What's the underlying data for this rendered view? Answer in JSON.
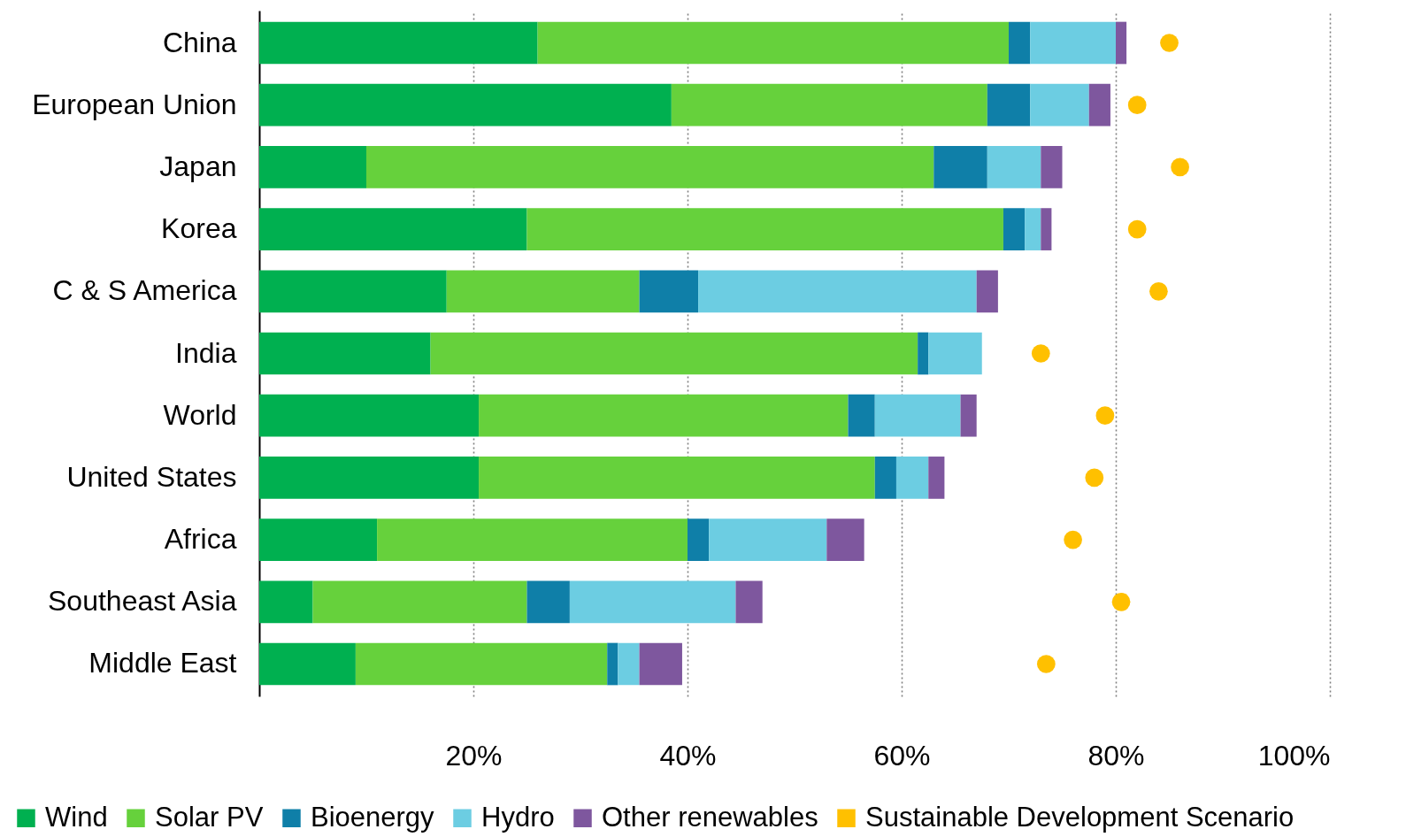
{
  "chart_data": {
    "type": "bar",
    "orientation": "horizontal",
    "stacked": true,
    "categories": [
      "China",
      "European Union",
      "Japan",
      "Korea",
      "C & S America",
      "India",
      "World",
      "United States",
      "Africa",
      "Southeast Asia",
      "Middle East"
    ],
    "series": [
      {
        "name": "Wind",
        "color": "#00b050",
        "values": [
          26,
          38.5,
          10,
          25,
          17.5,
          16,
          20.5,
          20.5,
          11,
          5,
          9
        ]
      },
      {
        "name": "Solar PV",
        "color": "#66d13c",
        "values": [
          44,
          29.5,
          53,
          44.5,
          18,
          45.5,
          34.5,
          37,
          29,
          20,
          23.5
        ]
      },
      {
        "name": "Bioenergy",
        "color": "#0f7fa8",
        "values": [
          2,
          4,
          5,
          2,
          5.5,
          1,
          2.5,
          2,
          2,
          4,
          1
        ]
      },
      {
        "name": "Hydro",
        "color": "#6ccde2",
        "values": [
          8,
          5.5,
          5,
          1.5,
          26,
          5,
          8,
          3,
          11,
          15.5,
          2
        ]
      },
      {
        "name": "Other renewables",
        "color": "#7e579e",
        "values": [
          1,
          2,
          2,
          1,
          2,
          null,
          1.5,
          1.5,
          3.5,
          2.5,
          4
        ]
      },
      {
        "name": "Sustainable Development Scenario",
        "type": "scatter",
        "marker": "circle",
        "color": "#ffc000",
        "x": [
          "China",
          "European Union",
          "Japan",
          "Korea",
          "C & S America",
          "India",
          "World",
          "United States",
          "Africa",
          "Southeast Asia",
          "Middle East"
        ],
        "values": [
          85,
          82,
          86,
          82,
          84,
          73,
          79,
          78,
          76,
          80.5,
          73.5
        ]
      }
    ],
    "xlim": [
      0,
      100
    ],
    "xticks": [
      {
        "value": 20,
        "label": "20%"
      },
      {
        "value": 40,
        "label": "40%"
      },
      {
        "value": 60,
        "label": "60%"
      },
      {
        "value": 80,
        "label": "80%"
      },
      {
        "value": 100,
        "label": "100%"
      }
    ],
    "grid": "x",
    "legend": "bottom"
  }
}
